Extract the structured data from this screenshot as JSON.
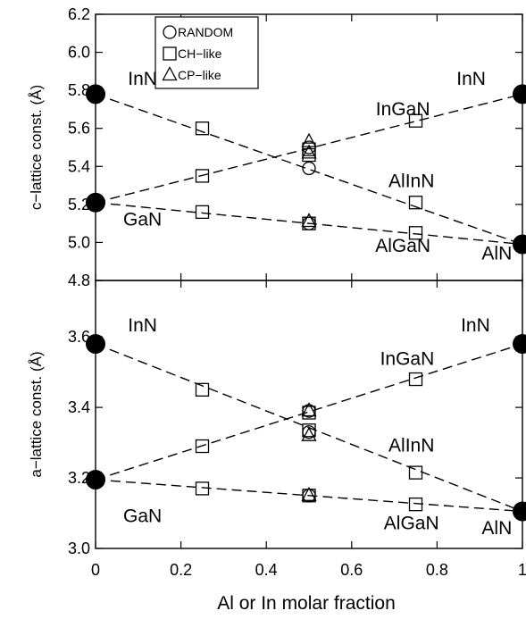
{
  "chart_data": {
    "type": "scatter",
    "xlabel": "Al or In molar fraction",
    "xlim": [
      0,
      1
    ],
    "xticks": [
      "0",
      "0.2",
      "0.4",
      "0.6",
      "0.8",
      "1"
    ],
    "legend": {
      "placement": "top-left",
      "entries": [
        {
          "marker": "circle",
          "label": "RANDOM"
        },
        {
          "marker": "square",
          "label": "CH−like"
        },
        {
          "marker": "triangle",
          "label": "CP−like"
        }
      ]
    },
    "panels": [
      {
        "id": "c",
        "ylabel": "c−lattice const. (Å)",
        "ylim": [
          4.8,
          6.2
        ],
        "yticks": [
          "4.8",
          "5.0",
          "5.2",
          "5.4",
          "5.6",
          "5.8",
          "6.0",
          "6.2"
        ],
        "endpoints": [
          {
            "x": 0,
            "y": 5.78
          },
          {
            "x": 0,
            "y": 5.21
          },
          {
            "x": 1,
            "y": 5.78
          },
          {
            "x": 1,
            "y": 4.99
          }
        ],
        "lines": [
          {
            "from": [
              0,
              5.21
            ],
            "to": [
              1,
              5.78
            ]
          },
          {
            "from": [
              0,
              5.78
            ],
            "to": [
              1,
              4.99
            ]
          },
          {
            "from": [
              0,
              5.21
            ],
            "to": [
              1,
              4.99
            ]
          }
        ],
        "series": [
          {
            "marker": "square",
            "points": [
              [
                0.25,
                5.6
              ],
              [
                0.75,
                5.64
              ],
              [
                0.25,
                5.35
              ],
              [
                0.75,
                5.21
              ],
              [
                0.25,
                5.16
              ],
              [
                0.75,
                5.05
              ],
              [
                0.5,
                5.46
              ],
              [
                0.5,
                5.49
              ],
              [
                0.5,
                5.1
              ]
            ]
          },
          {
            "marker": "circle",
            "points": [
              [
                0.5,
                5.39
              ],
              [
                0.5,
                5.5
              ],
              [
                0.5,
                5.1
              ]
            ]
          },
          {
            "marker": "triangle",
            "points": [
              [
                0.5,
                5.53
              ],
              [
                0.5,
                5.47
              ],
              [
                0.5,
                5.11
              ]
            ]
          }
        ],
        "annotations": [
          {
            "text": "InN",
            "at": [
              0.11,
              5.83
            ]
          },
          {
            "text": "GaN",
            "at": [
              0.11,
              5.09
            ]
          },
          {
            "text": "InN",
            "at": [
              0.88,
              5.83
            ]
          },
          {
            "text": "InGaN",
            "at": [
              0.72,
              5.67
            ]
          },
          {
            "text": "AlInN",
            "at": [
              0.74,
              5.29
            ]
          },
          {
            "text": "AlGaN",
            "at": [
              0.72,
              4.95
            ]
          },
          {
            "text": "AlN",
            "at": [
              0.94,
              4.91
            ]
          }
        ]
      },
      {
        "id": "a",
        "ylabel": "a−lattice const. (Å)",
        "ylim": [
          3.0,
          3.76
        ],
        "yticks": [
          "3.0",
          "3.2",
          "3.4",
          "3.6"
        ],
        "endpoints": [
          {
            "x": 0,
            "y": 3.58
          },
          {
            "x": 0,
            "y": 3.195
          },
          {
            "x": 1,
            "y": 3.58
          },
          {
            "x": 1,
            "y": 3.105
          }
        ],
        "lines": [
          {
            "from": [
              0,
              3.195
            ],
            "to": [
              1,
              3.58
            ]
          },
          {
            "from": [
              0,
              3.58
            ],
            "to": [
              1,
              3.105
            ]
          },
          {
            "from": [
              0,
              3.195
            ],
            "to": [
              1,
              3.105
            ]
          }
        ],
        "series": [
          {
            "marker": "square",
            "points": [
              [
                0.25,
                3.45
              ],
              [
                0.75,
                3.48
              ],
              [
                0.25,
                3.29
              ],
              [
                0.75,
                3.215
              ],
              [
                0.25,
                3.17
              ],
              [
                0.75,
                3.125
              ],
              [
                0.5,
                3.335
              ],
              [
                0.5,
                3.385
              ],
              [
                0.5,
                3.15
              ]
            ]
          },
          {
            "marker": "circle",
            "points": [
              [
                0.5,
                3.39
              ],
              [
                0.5,
                3.33
              ],
              [
                0.5,
                3.15
              ]
            ]
          },
          {
            "marker": "triangle",
            "points": [
              [
                0.5,
                3.39
              ],
              [
                0.5,
                3.32
              ],
              [
                0.5,
                3.15
              ]
            ]
          }
        ],
        "annotations": [
          {
            "text": "InN",
            "at": [
              0.11,
              3.615
            ]
          },
          {
            "text": "GaN",
            "at": [
              0.11,
              3.075
            ]
          },
          {
            "text": "InN",
            "at": [
              0.89,
              3.615
            ]
          },
          {
            "text": "InGaN",
            "at": [
              0.73,
              3.52
            ]
          },
          {
            "text": "AlInN",
            "at": [
              0.74,
              3.275
            ]
          },
          {
            "text": "AlGaN",
            "at": [
              0.74,
              3.055
            ]
          },
          {
            "text": "AlN",
            "at": [
              0.94,
              3.04
            ]
          }
        ]
      }
    ]
  }
}
